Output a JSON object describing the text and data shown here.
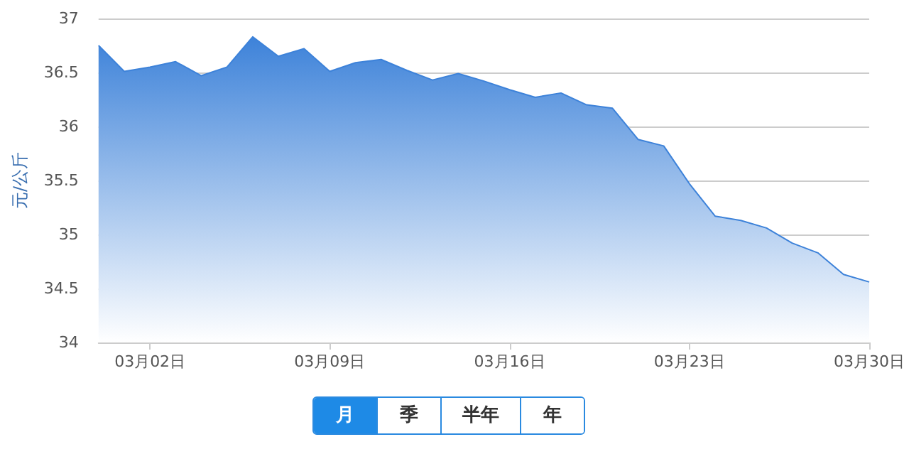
{
  "chart_data": {
    "type": "area",
    "ylabel": "元/公斤",
    "categories": [
      null,
      null,
      "03月02日",
      null,
      null,
      null,
      null,
      null,
      null,
      "03月09日",
      null,
      null,
      null,
      null,
      null,
      null,
      "03月16日",
      null,
      null,
      null,
      null,
      null,
      null,
      "03月23日",
      null,
      null,
      null,
      null,
      null,
      null,
      "03月30日"
    ],
    "values": [
      36.75,
      36.51,
      36.55,
      36.6,
      36.47,
      36.55,
      36.83,
      36.65,
      36.72,
      36.51,
      36.59,
      36.62,
      36.52,
      36.43,
      36.49,
      36.42,
      36.34,
      36.27,
      36.31,
      36.2,
      36.17,
      35.88,
      35.82,
      35.47,
      35.17,
      35.13,
      35.06,
      34.92,
      34.83,
      34.63,
      34.56
    ],
    "color": "#3d82d9",
    "ylim": [
      34,
      37
    ],
    "yticks": [
      34,
      34.5,
      35,
      35.5,
      36,
      36.5,
      37
    ],
    "grid": "y",
    "annotations": [
      "月",
      "季",
      "半年",
      "年"
    ]
  }
}
